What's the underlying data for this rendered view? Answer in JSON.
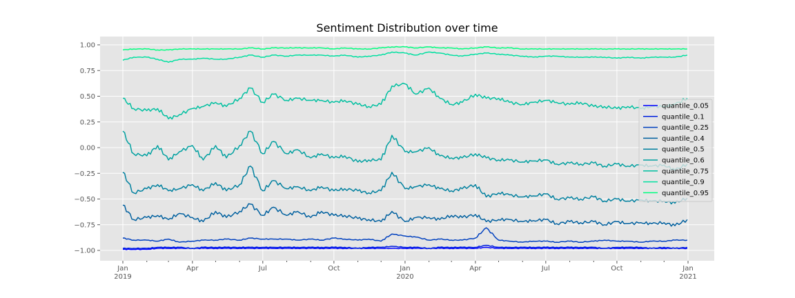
{
  "chart_data": {
    "type": "line",
    "title": "Sentiment Distribution over time",
    "xlabel": "",
    "ylabel": "",
    "x_range": [
      "2019-01-01",
      "2020-12-31"
    ],
    "ylim": [
      -1.1,
      1.1
    ],
    "grid": true,
    "legend_position": "right",
    "x_ticks": [
      {
        "date": "2019-01-01",
        "label": "Jan",
        "sublabel": "2019"
      },
      {
        "date": "2019-04-01",
        "label": "Apr",
        "sublabel": ""
      },
      {
        "date": "2019-07-01",
        "label": "Jul",
        "sublabel": ""
      },
      {
        "date": "2019-10-01",
        "label": "Oct",
        "sublabel": ""
      },
      {
        "date": "2020-01-01",
        "label": "Jan",
        "sublabel": "2020"
      },
      {
        "date": "2020-04-01",
        "label": "Apr",
        "sublabel": ""
      },
      {
        "date": "2020-07-01",
        "label": "Jul",
        "sublabel": ""
      },
      {
        "date": "2020-10-01",
        "label": "Oct",
        "sublabel": ""
      },
      {
        "date": "2021-01-01",
        "label": "Jan",
        "sublabel": "2021"
      }
    ],
    "y_ticks": [
      {
        "value": 1.0,
        "label": "1.00"
      },
      {
        "value": 0.75,
        "label": "0.75"
      },
      {
        "value": 0.5,
        "label": "0.50"
      },
      {
        "value": 0.25,
        "label": "0.25"
      },
      {
        "value": 0.0,
        "label": "0.00"
      },
      {
        "value": -0.25,
        "label": "−0.25"
      },
      {
        "value": -0.5,
        "label": "−0.50"
      },
      {
        "value": -0.75,
        "label": "−0.75"
      },
      {
        "value": -1.0,
        "label": "−1.00"
      }
    ],
    "x": [
      "2019-01-01",
      "2019-01-15",
      "2019-02-01",
      "2019-02-15",
      "2019-03-01",
      "2019-03-15",
      "2019-04-01",
      "2019-04-15",
      "2019-05-01",
      "2019-05-15",
      "2019-06-01",
      "2019-06-15",
      "2019-07-01",
      "2019-07-15",
      "2019-08-01",
      "2019-08-15",
      "2019-09-01",
      "2019-09-15",
      "2019-10-01",
      "2019-10-15",
      "2019-11-01",
      "2019-11-15",
      "2019-12-01",
      "2019-12-15",
      "2020-01-01",
      "2020-01-15",
      "2020-02-01",
      "2020-02-15",
      "2020-03-01",
      "2020-03-15",
      "2020-04-01",
      "2020-04-15",
      "2020-05-01",
      "2020-05-15",
      "2020-06-01",
      "2020-06-15",
      "2020-07-01",
      "2020-07-15",
      "2020-08-01",
      "2020-08-15",
      "2020-09-01",
      "2020-09-15",
      "2020-10-01",
      "2020-10-15",
      "2020-11-01",
      "2020-11-15",
      "2020-12-01",
      "2020-12-15",
      "2020-12-31"
    ],
    "series": [
      {
        "name": "quantile_0.05",
        "color": "#0000ff",
        "values": [
          -0.99,
          -0.99,
          -0.99,
          -0.98,
          -0.98,
          -0.98,
          -0.98,
          -0.98,
          -0.98,
          -0.98,
          -0.98,
          -0.98,
          -0.98,
          -0.98,
          -0.98,
          -0.98,
          -0.98,
          -0.98,
          -0.98,
          -0.98,
          -0.98,
          -0.98,
          -0.98,
          -0.98,
          -0.98,
          -0.98,
          -0.98,
          -0.98,
          -0.98,
          -0.98,
          -0.98,
          -0.97,
          -0.98,
          -0.98,
          -0.98,
          -0.98,
          -0.98,
          -0.98,
          -0.98,
          -0.98,
          -0.98,
          -0.98,
          -0.98,
          -0.98,
          -0.98,
          -0.98,
          -0.98,
          -0.98,
          -0.98
        ]
      },
      {
        "name": "quantile_0.1",
        "color": "#0020df",
        "values": [
          -0.98,
          -0.98,
          -0.98,
          -0.97,
          -0.97,
          -0.97,
          -0.98,
          -0.97,
          -0.97,
          -0.97,
          -0.97,
          -0.97,
          -0.97,
          -0.97,
          -0.97,
          -0.97,
          -0.97,
          -0.97,
          -0.97,
          -0.97,
          -0.98,
          -0.97,
          -0.97,
          -0.96,
          -0.97,
          -0.97,
          -0.98,
          -0.97,
          -0.97,
          -0.97,
          -0.97,
          -0.95,
          -0.97,
          -0.97,
          -0.97,
          -0.97,
          -0.97,
          -0.97,
          -0.97,
          -0.97,
          -0.97,
          -0.98,
          -0.97,
          -0.97,
          -0.97,
          -0.98,
          -0.97,
          -0.98,
          -0.97
        ]
      },
      {
        "name": "quantile_0.25",
        "color": "#0040bf",
        "values": [
          -0.88,
          -0.9,
          -0.9,
          -0.91,
          -0.89,
          -0.92,
          -0.91,
          -0.9,
          -0.9,
          -0.89,
          -0.9,
          -0.88,
          -0.89,
          -0.89,
          -0.89,
          -0.9,
          -0.89,
          -0.9,
          -0.88,
          -0.89,
          -0.9,
          -0.89,
          -0.91,
          -0.84,
          -0.86,
          -0.87,
          -0.9,
          -0.89,
          -0.9,
          -0.9,
          -0.88,
          -0.78,
          -0.9,
          -0.91,
          -0.92,
          -0.91,
          -0.91,
          -0.92,
          -0.91,
          -0.92,
          -0.91,
          -0.9,
          -0.91,
          -0.91,
          -0.92,
          -0.91,
          -0.91,
          -0.9,
          -0.9
        ]
      },
      {
        "name": "quantile_0.4",
        "color": "#00609f",
        "values": [
          -0.56,
          -0.7,
          -0.68,
          -0.66,
          -0.7,
          -0.64,
          -0.68,
          -0.72,
          -0.62,
          -0.68,
          -0.62,
          -0.55,
          -0.66,
          -0.58,
          -0.66,
          -0.62,
          -0.68,
          -0.62,
          -0.66,
          -0.66,
          -0.69,
          -0.7,
          -0.72,
          -0.62,
          -0.72,
          -0.68,
          -0.68,
          -0.7,
          -0.66,
          -0.68,
          -0.65,
          -0.72,
          -0.7,
          -0.7,
          -0.72,
          -0.71,
          -0.7,
          -0.74,
          -0.72,
          -0.73,
          -0.72,
          -0.75,
          -0.72,
          -0.74,
          -0.73,
          -0.74,
          -0.73,
          -0.76,
          -0.7
        ]
      },
      {
        "name": "quantile_0.5",
        "color": "#00809f",
        "values": [
          -0.24,
          -0.44,
          -0.4,
          -0.36,
          -0.42,
          -0.4,
          -0.36,
          -0.42,
          -0.34,
          -0.42,
          -0.36,
          -0.18,
          -0.42,
          -0.32,
          -0.4,
          -0.38,
          -0.42,
          -0.38,
          -0.42,
          -0.4,
          -0.42,
          -0.44,
          -0.42,
          -0.24,
          -0.4,
          -0.38,
          -0.36,
          -0.4,
          -0.42,
          -0.4,
          -0.36,
          -0.48,
          -0.44,
          -0.46,
          -0.48,
          -0.47,
          -0.45,
          -0.5,
          -0.49,
          -0.5,
          -0.48,
          -0.52,
          -0.5,
          -0.52,
          -0.51,
          -0.52,
          -0.52,
          -0.54,
          -0.49
        ]
      },
      {
        "name": "quantile_0.6",
        "color": "#00a0a0",
        "values": [
          0.16,
          -0.06,
          -0.08,
          0.02,
          -0.12,
          -0.04,
          0.02,
          -0.12,
          0.02,
          -0.1,
          0.02,
          0.16,
          -0.06,
          0.06,
          -0.06,
          -0.02,
          -0.1,
          -0.06,
          -0.1,
          -0.08,
          -0.14,
          -0.12,
          -0.12,
          0.12,
          -0.04,
          -0.04,
          0.0,
          -0.08,
          -0.1,
          -0.1,
          -0.06,
          -0.1,
          -0.12,
          -0.12,
          -0.14,
          -0.13,
          -0.12,
          -0.16,
          -0.15,
          -0.16,
          -0.15,
          -0.18,
          -0.16,
          -0.18,
          -0.17,
          -0.18,
          -0.17,
          -0.22,
          -0.16
        ]
      },
      {
        "name": "quantile_0.75",
        "color": "#00c0a0",
        "values": [
          0.48,
          0.38,
          0.36,
          0.38,
          0.28,
          0.32,
          0.38,
          0.4,
          0.44,
          0.4,
          0.48,
          0.58,
          0.44,
          0.52,
          0.46,
          0.48,
          0.46,
          0.46,
          0.44,
          0.46,
          0.42,
          0.4,
          0.42,
          0.6,
          0.62,
          0.52,
          0.58,
          0.48,
          0.42,
          0.44,
          0.52,
          0.48,
          0.48,
          0.44,
          0.42,
          0.44,
          0.46,
          0.44,
          0.42,
          0.44,
          0.4,
          0.4,
          0.38,
          0.4,
          0.38,
          0.4,
          0.4,
          0.42,
          0.48
        ]
      },
      {
        "name": "quantile_0.9",
        "color": "#00e0a0",
        "values": [
          0.85,
          0.88,
          0.88,
          0.86,
          0.83,
          0.86,
          0.86,
          0.87,
          0.86,
          0.86,
          0.88,
          0.9,
          0.88,
          0.9,
          0.89,
          0.9,
          0.9,
          0.9,
          0.89,
          0.9,
          0.88,
          0.89,
          0.9,
          0.93,
          0.92,
          0.9,
          0.93,
          0.92,
          0.9,
          0.89,
          0.91,
          0.92,
          0.91,
          0.9,
          0.89,
          0.88,
          0.89,
          0.89,
          0.88,
          0.88,
          0.88,
          0.88,
          0.87,
          0.88,
          0.87,
          0.88,
          0.88,
          0.88,
          0.9
        ]
      },
      {
        "name": "quantile_0.95",
        "color": "#00ff80",
        "values": [
          0.95,
          0.96,
          0.96,
          0.95,
          0.95,
          0.96,
          0.96,
          0.96,
          0.96,
          0.96,
          0.96,
          0.97,
          0.96,
          0.97,
          0.97,
          0.97,
          0.97,
          0.97,
          0.96,
          0.97,
          0.96,
          0.96,
          0.97,
          0.98,
          0.98,
          0.97,
          0.98,
          0.97,
          0.97,
          0.96,
          0.97,
          0.98,
          0.97,
          0.97,
          0.96,
          0.96,
          0.96,
          0.96,
          0.96,
          0.96,
          0.96,
          0.96,
          0.96,
          0.96,
          0.96,
          0.96,
          0.96,
          0.96,
          0.96
        ]
      }
    ]
  }
}
